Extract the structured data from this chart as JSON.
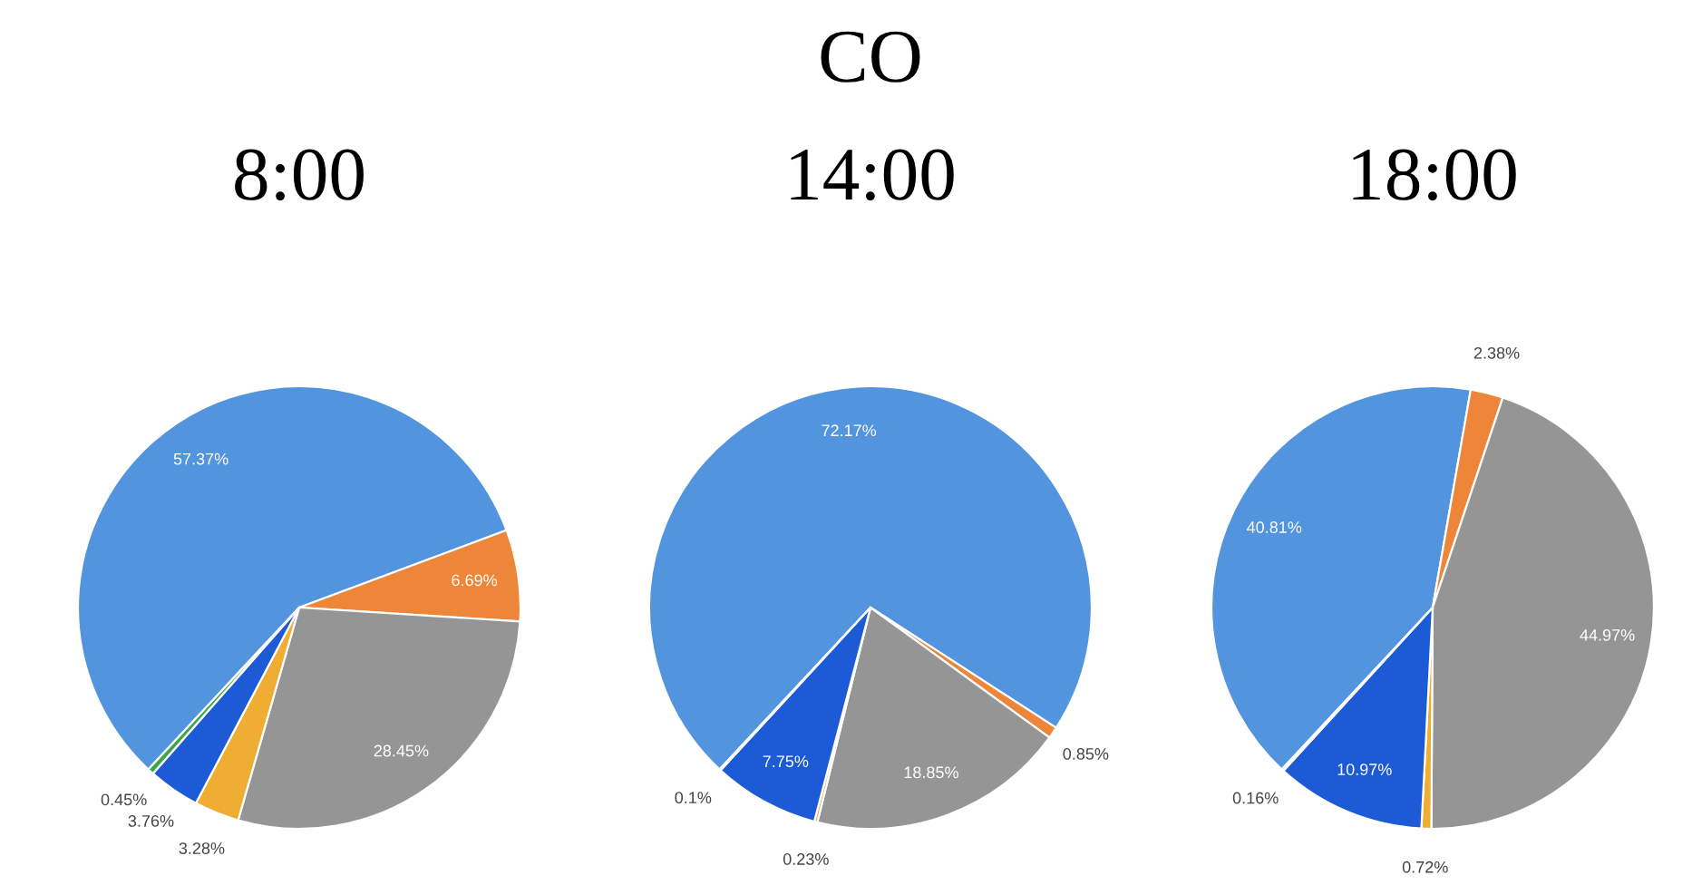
{
  "chart_data": [
    {
      "type": "pie",
      "subtitle": "8:00",
      "categories": [
        null,
        null,
        null,
        null,
        null,
        null
      ],
      "values": [
        57.37,
        6.69,
        28.45,
        3.28,
        3.76,
        0.45
      ],
      "value_labels": [
        "57.37%",
        "6.69%",
        "28.45%",
        "3.28%",
        "3.76%",
        "0.45%"
      ],
      "colors": [
        "#5294dd",
        "#ee8639",
        "#959595",
        "#efae33",
        "#1c5ad6",
        "#3fa54a"
      ]
    },
    {
      "type": "pie",
      "title": "CO",
      "subtitle": "14:00",
      "categories": [
        null,
        null,
        null,
        null,
        null,
        null
      ],
      "values": [
        72.17,
        0.85,
        18.85,
        0.23,
        7.75,
        0.1
      ],
      "value_labels": [
        "72.17%",
        "0.85%",
        "18.85%",
        "0.23%",
        "7.75%",
        "0.1%"
      ],
      "colors": [
        "#5294dd",
        "#ee8639",
        "#959595",
        "#efae33",
        "#1c5ad6",
        "#3fa54a"
      ]
    },
    {
      "type": "pie",
      "subtitle": "18:00",
      "categories": [
        null,
        null,
        null,
        null,
        null,
        null
      ],
      "values": [
        40.81,
        2.38,
        44.97,
        0.72,
        10.97,
        0.16
      ],
      "value_labels": [
        "40.81%",
        "2.38%",
        "44.97%",
        "0.72%",
        "10.97%",
        "0.16%"
      ],
      "colors": [
        "#5294dd",
        "#ee8639",
        "#959595",
        "#efae33",
        "#1c5ad6",
        "#3fa54a"
      ]
    }
  ]
}
